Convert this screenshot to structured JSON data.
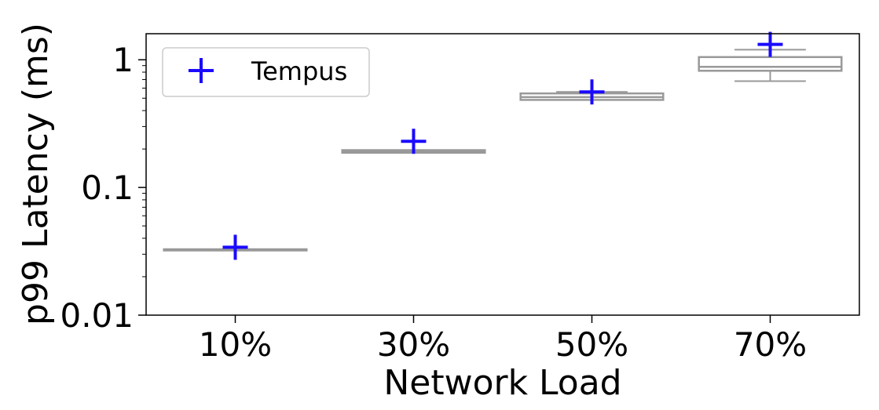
{
  "chart_data": {
    "type": "box",
    "title": "",
    "xlabel": "Network Load",
    "ylabel": "p99 Latency (ms)",
    "yscale": "log",
    "ylim": [
      0.01,
      1.6
    ],
    "yticks": [
      "0.01",
      "0.1",
      "1"
    ],
    "categories": [
      "10%",
      "30%",
      "50%",
      "70%"
    ],
    "legend": {
      "position": "top-left",
      "entries": [
        "Tempus"
      ]
    },
    "grid": false,
    "baseline_boxes": {
      "color": "#999999",
      "boxes": [
        {
          "category": "10%",
          "whisker_low": 0.0322,
          "q1": 0.0322,
          "median": 0.0325,
          "q3": 0.0328,
          "whisker_high": 0.0328
        },
        {
          "category": "30%",
          "whisker_low": 0.187,
          "q1": 0.187,
          "median": 0.191,
          "q3": 0.196,
          "whisker_high": 0.196
        },
        {
          "category": "50%",
          "whisker_low": 0.485,
          "q1": 0.485,
          "median": 0.51,
          "q3": 0.545,
          "whisker_high": 0.56
        },
        {
          "category": "70%",
          "whisker_low": 0.68,
          "q1": 0.82,
          "median": 0.88,
          "q3": 1.05,
          "whisker_high": 1.2
        }
      ]
    },
    "series": [
      {
        "name": "Tempus",
        "color": "#1a0aff",
        "marker": "plus",
        "values": [
          0.034,
          0.23,
          0.56,
          1.32
        ]
      }
    ]
  }
}
